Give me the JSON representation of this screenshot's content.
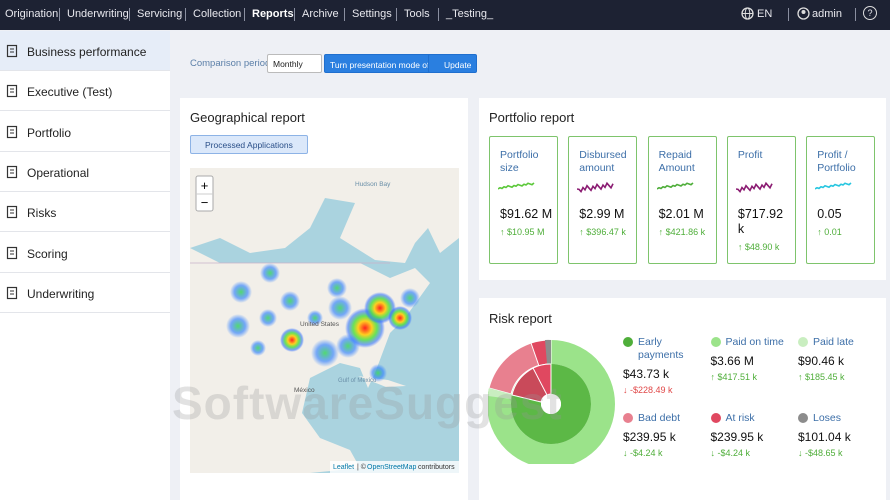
{
  "nav": {
    "items": [
      "Origination",
      "Underwriting",
      "Servicing",
      "Collection",
      "Reports",
      "Archive",
      "Settings",
      "Tools",
      "_Testing_"
    ],
    "active": "Reports",
    "language": "EN",
    "user": "admin",
    "help": "?"
  },
  "sidebar": {
    "items": [
      "Business performance",
      "Executive (Test)",
      "Portfolio",
      "Operational",
      "Risks",
      "Scoring",
      "Underwriting"
    ],
    "active": "Business performance"
  },
  "toolbar": {
    "label": "Comparison period",
    "period": "Monthly",
    "presentation_button": "Turn presentation mode off",
    "update_button": "Update"
  },
  "geo": {
    "title": "Geographical report",
    "filter": "Processed Applications",
    "zoom_in": "+",
    "zoom_out": "−",
    "labels": {
      "hudson": "Hudson Bay",
      "us": "United States",
      "mexico": "México",
      "gulf": "Gulf of Mexico"
    },
    "attribution": {
      "leaflet": "Leaflet",
      "sep": "| ©",
      "osm": "OpenStreetMap",
      "tail": "contributors"
    }
  },
  "portfolio": {
    "title": "Portfolio report",
    "cards": [
      {
        "label": "Portfolio size",
        "value": "$91.62 M",
        "change": "↑ $10.95 M",
        "color": "#5cc83a"
      },
      {
        "label": "Disbursed amount",
        "value": "$2.99 M",
        "change": "↑ $396.47 k",
        "color": "#8b1c72"
      },
      {
        "label": "Repaid Amount",
        "value": "$2.01 M",
        "change": "↑ $421.86 k",
        "color": "#4fae3a"
      },
      {
        "label": "Profit",
        "value": "$717.92 k",
        "change": "↑ $48.90 k",
        "color": "#8b1c72"
      },
      {
        "label": "Profit / Portfolio",
        "value": "0.05",
        "change": "↑ 0.01",
        "color": "#27c6e0"
      }
    ]
  },
  "risk": {
    "title": "Risk report",
    "items": [
      {
        "label": "Early payments",
        "value": "$43.73 k",
        "change": "↓ -$228.49 k",
        "color": "#4fae3a",
        "change_color": "#e04848"
      },
      {
        "label": "Paid on time",
        "value": "$3.66 M",
        "change": "↑ $417.51 k",
        "color": "#9be38a",
        "change_color": "#4fae3a"
      },
      {
        "label": "Paid late",
        "value": "$90.46 k",
        "change": "↑ $185.45 k",
        "color": "#c9eec0",
        "change_color": "#4fae3a"
      },
      {
        "label": "Bad debt",
        "value": "$239.95 k",
        "change": "↓ -$4.24 k",
        "color": "#e8808f",
        "change_color": "#4fae3a"
      },
      {
        "label": "At risk",
        "value": "$239.95 k",
        "change": "↓ -$4.24 k",
        "color": "#e04860",
        "change_color": "#4fae3a"
      },
      {
        "label": "Loses",
        "value": "$101.04 k",
        "change": "↓ -$48.65 k",
        "color": "#8c8c8c",
        "change_color": "#4fae3a"
      }
    ]
  },
  "watermark": "SoftwareSuggest"
}
